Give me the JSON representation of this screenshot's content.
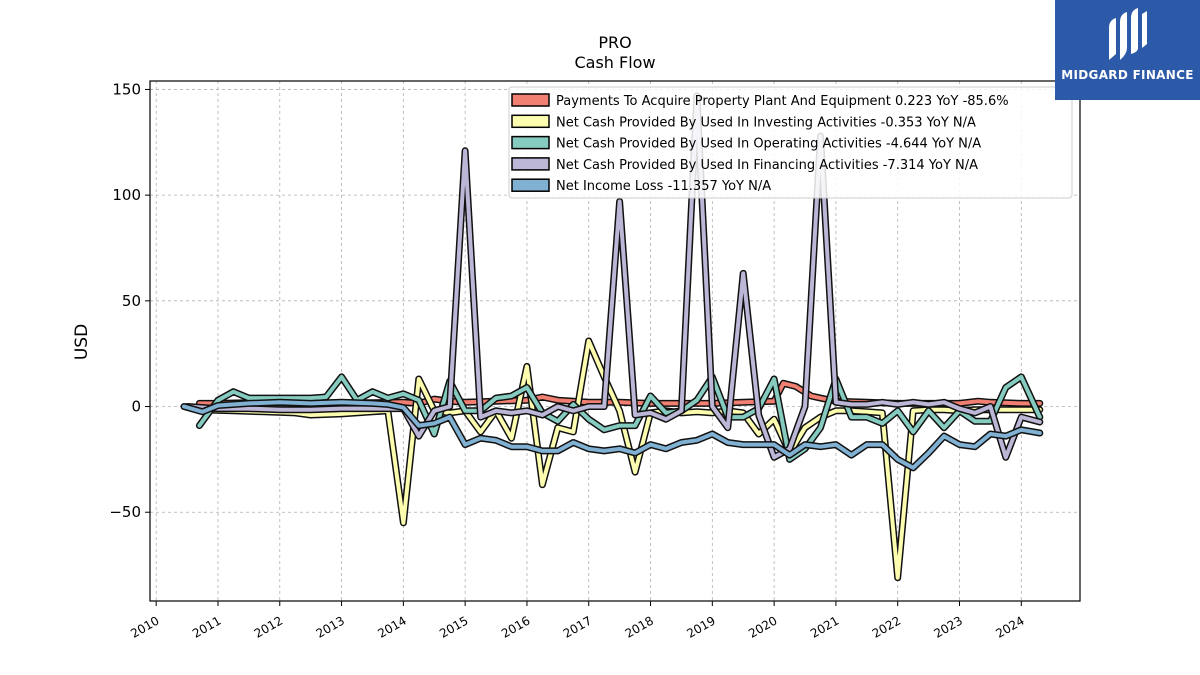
{
  "brand": {
    "name": "MIDGARD FINANCE",
    "logo_icon": "midgard-m-logo-icon",
    "background": "#2d5aa8"
  },
  "chart_data": {
    "type": "line",
    "title": "PRO",
    "subtitle": "Cash Flow",
    "ylabel": "USD",
    "xlabel": "",
    "xlim": [
      2009.9,
      2024.95
    ],
    "ylim": [
      -92,
      154
    ],
    "yticks": [
      -50,
      0,
      50,
      100,
      150
    ],
    "ytick_labels": [
      "−50",
      "0",
      "50",
      "100",
      "150"
    ],
    "xticks": [
      2010,
      2011,
      2012,
      2013,
      2014,
      2015,
      2016,
      2017,
      2018,
      2019,
      2020,
      2021,
      2022,
      2023,
      2024
    ],
    "xtick_labels": [
      "2010",
      "2011",
      "2012",
      "2013",
      "2014",
      "2015",
      "2016",
      "2017",
      "2018",
      "2019",
      "2020",
      "2021",
      "2022",
      "2023",
      "2024"
    ],
    "grid": true,
    "legend_position": "top-right",
    "series": [
      {
        "name": "Payments To Acquire Property Plant And Equipment  0.223 YoY -85.6%",
        "color": "#f28072",
        "points": [
          [
            2010.7,
            1.5
          ],
          [
            2011.0,
            1.5
          ],
          [
            2011.5,
            1.8
          ],
          [
            2012.0,
            1.8
          ],
          [
            2012.5,
            1.5
          ],
          [
            2013.0,
            1.8
          ],
          [
            2013.5,
            1.8
          ],
          [
            2014.0,
            2.0
          ],
          [
            2014.25,
            1.5
          ],
          [
            2014.5,
            3.5
          ],
          [
            2014.75,
            2.5
          ],
          [
            2015.0,
            2.0
          ],
          [
            2015.5,
            2.5
          ],
          [
            2016.0,
            3.0
          ],
          [
            2016.25,
            4.5
          ],
          [
            2016.5,
            3.0
          ],
          [
            2017.0,
            2.0
          ],
          [
            2017.5,
            2.0
          ],
          [
            2018.0,
            1.5
          ],
          [
            2018.5,
            1.5
          ],
          [
            2019.0,
            1.5
          ],
          [
            2019.5,
            2.0
          ],
          [
            2020.0,
            2.5
          ],
          [
            2020.15,
            11.0
          ],
          [
            2020.35,
            9.5
          ],
          [
            2020.6,
            5.0
          ],
          [
            2020.75,
            4.0
          ],
          [
            2021.0,
            2.5
          ],
          [
            2021.5,
            2.0
          ],
          [
            2022.0,
            1.5
          ],
          [
            2022.5,
            1.5
          ],
          [
            2023.0,
            1.5
          ],
          [
            2023.3,
            2.5
          ],
          [
            2023.5,
            2.0
          ],
          [
            2024.0,
            1.5
          ],
          [
            2024.3,
            1.5
          ]
        ]
      },
      {
        "name": "Net Cash Provided By Used In Investing Activities  -0.353 YoY N/A",
        "color": "#fdfdb0",
        "points": [
          [
            2010.7,
            -1.5
          ],
          [
            2011.25,
            -2.0
          ],
          [
            2011.75,
            -2.5
          ],
          [
            2012.25,
            -3.0
          ],
          [
            2012.5,
            -4.0
          ],
          [
            2013.0,
            -3.5
          ],
          [
            2013.5,
            -2.5
          ],
          [
            2013.75,
            -2.0
          ],
          [
            2014.0,
            -55.0
          ],
          [
            2014.25,
            13.0
          ],
          [
            2014.5,
            -2.0
          ],
          [
            2014.75,
            -3.0
          ],
          [
            2015.0,
            -2.0
          ],
          [
            2015.25,
            -12.0
          ],
          [
            2015.5,
            -2.0
          ],
          [
            2015.75,
            -15.0
          ],
          [
            2016.0,
            19.0
          ],
          [
            2016.25,
            -37.0
          ],
          [
            2016.5,
            -10.0
          ],
          [
            2016.75,
            -12.0
          ],
          [
            2017.0,
            31.0
          ],
          [
            2017.25,
            14.0
          ],
          [
            2017.5,
            -2.0
          ],
          [
            2017.75,
            -31.0
          ],
          [
            2018.0,
            -3.0
          ],
          [
            2018.25,
            -2.0
          ],
          [
            2018.5,
            -3.0
          ],
          [
            2018.75,
            -2.5
          ],
          [
            2019.0,
            -3.0
          ],
          [
            2019.25,
            -2.0
          ],
          [
            2019.5,
            -3.0
          ],
          [
            2019.75,
            -13.0
          ],
          [
            2020.0,
            -6.0
          ],
          [
            2020.25,
            -22.0
          ],
          [
            2020.5,
            -10.0
          ],
          [
            2020.75,
            -5.0
          ],
          [
            2021.0,
            -2.0
          ],
          [
            2021.25,
            -2.0
          ],
          [
            2021.5,
            -2.5
          ],
          [
            2021.75,
            -3.0
          ],
          [
            2022.0,
            -81.0
          ],
          [
            2022.25,
            -2.0
          ],
          [
            2022.5,
            -1.5
          ],
          [
            2022.75,
            -1.5
          ],
          [
            2023.0,
            -2.0
          ],
          [
            2023.25,
            -1.5
          ],
          [
            2023.5,
            -1.5
          ],
          [
            2023.75,
            -1.5
          ],
          [
            2024.0,
            -1.5
          ],
          [
            2024.3,
            -1.5
          ]
        ]
      },
      {
        "name": "Net Cash Provided By Used In Operating Activities  -4.644 YoY N/A",
        "color": "#85cbbf",
        "points": [
          [
            2010.7,
            -9.0
          ],
          [
            2011.0,
            3.0
          ],
          [
            2011.25,
            7.0
          ],
          [
            2011.5,
            4.0
          ],
          [
            2012.0,
            4.0
          ],
          [
            2012.5,
            4.0
          ],
          [
            2012.75,
            4.5
          ],
          [
            2013.0,
            14.0
          ],
          [
            2013.25,
            3.0
          ],
          [
            2013.5,
            7.0
          ],
          [
            2013.75,
            4.0
          ],
          [
            2014.0,
            6.0
          ],
          [
            2014.25,
            3.0
          ],
          [
            2014.5,
            -13.0
          ],
          [
            2014.75,
            12.0
          ],
          [
            2015.0,
            -2.0
          ],
          [
            2015.25,
            -2.0
          ],
          [
            2015.5,
            4.0
          ],
          [
            2015.75,
            5.0
          ],
          [
            2016.0,
            9.0
          ],
          [
            2016.25,
            -3.0
          ],
          [
            2016.5,
            -7.0
          ],
          [
            2016.75,
            1.0
          ],
          [
            2017.0,
            -6.0
          ],
          [
            2017.25,
            -11.0
          ],
          [
            2017.5,
            -9.0
          ],
          [
            2017.75,
            -9.0
          ],
          [
            2018.0,
            5.0
          ],
          [
            2018.25,
            -3.0
          ],
          [
            2018.5,
            -2.0
          ],
          [
            2018.75,
            3.0
          ],
          [
            2019.0,
            14.0
          ],
          [
            2019.25,
            -5.0
          ],
          [
            2019.5,
            -5.0
          ],
          [
            2019.75,
            -1.0
          ],
          [
            2020.0,
            13.0
          ],
          [
            2020.25,
            -25.0
          ],
          [
            2020.5,
            -20.0
          ],
          [
            2020.75,
            -10.0
          ],
          [
            2021.0,
            13.0
          ],
          [
            2021.25,
            -5.0
          ],
          [
            2021.5,
            -5.0
          ],
          [
            2021.75,
            -8.0
          ],
          [
            2022.0,
            -2.0
          ],
          [
            2022.25,
            -12.0
          ],
          [
            2022.5,
            -2.0
          ],
          [
            2022.75,
            -10.0
          ],
          [
            2023.0,
            -2.0
          ],
          [
            2023.25,
            -7.0
          ],
          [
            2023.5,
            -7.0
          ],
          [
            2023.75,
            9.0
          ],
          [
            2024.0,
            14.0
          ],
          [
            2024.3,
            -5.0
          ]
        ]
      },
      {
        "name": "Net Cash Provided By Used In Financing Activities  -7.314 YoY N/A",
        "color": "#bcb7d7",
        "points": [
          [
            2010.5,
            0.0
          ],
          [
            2011.0,
            -1.0
          ],
          [
            2011.5,
            -1.0
          ],
          [
            2012.0,
            -1.5
          ],
          [
            2012.5,
            -1.5
          ],
          [
            2013.0,
            -1.0
          ],
          [
            2013.5,
            -1.0
          ],
          [
            2014.0,
            -1.0
          ],
          [
            2014.25,
            -14.0
          ],
          [
            2014.5,
            -2.0
          ],
          [
            2014.75,
            0.0
          ],
          [
            2015.0,
            121.0
          ],
          [
            2015.25,
            -5.0
          ],
          [
            2015.5,
            -2.0
          ],
          [
            2015.75,
            -3.0
          ],
          [
            2016.0,
            -2.0
          ],
          [
            2016.25,
            -4.0
          ],
          [
            2016.5,
            0.0
          ],
          [
            2016.75,
            -2.0
          ],
          [
            2017.0,
            0.0
          ],
          [
            2017.25,
            0.0
          ],
          [
            2017.5,
            97.0
          ],
          [
            2017.75,
            -4.0
          ],
          [
            2018.0,
            -3.0
          ],
          [
            2018.25,
            -6.0
          ],
          [
            2018.5,
            -2.0
          ],
          [
            2018.75,
            147.0
          ],
          [
            2019.0,
            0.0
          ],
          [
            2019.25,
            -10.0
          ],
          [
            2019.5,
            63.0
          ],
          [
            2019.75,
            -4.0
          ],
          [
            2020.0,
            -24.0
          ],
          [
            2020.25,
            -20.0
          ],
          [
            2020.5,
            0.0
          ],
          [
            2020.75,
            128.0
          ],
          [
            2021.0,
            2.0
          ],
          [
            2021.25,
            1.0
          ],
          [
            2021.5,
            1.0
          ],
          [
            2021.75,
            2.0
          ],
          [
            2022.0,
            1.0
          ],
          [
            2022.25,
            2.0
          ],
          [
            2022.5,
            1.0
          ],
          [
            2022.75,
            2.0
          ],
          [
            2023.0,
            -1.0
          ],
          [
            2023.25,
            -3.0
          ],
          [
            2023.5,
            0.0
          ],
          [
            2023.75,
            -24.0
          ],
          [
            2024.0,
            -5.0
          ],
          [
            2024.3,
            -7.3
          ]
        ]
      },
      {
        "name": "Net Income Loss  -11.357 YoY N/A",
        "color": "#80b1d3",
        "points": [
          [
            2010.45,
            0.0
          ],
          [
            2010.75,
            -2.5
          ],
          [
            2011.0,
            0.5
          ],
          [
            2011.5,
            1.5
          ],
          [
            2012.0,
            2.0
          ],
          [
            2012.5,
            1.5
          ],
          [
            2013.0,
            2.0
          ],
          [
            2013.5,
            1.5
          ],
          [
            2013.75,
            1.0
          ],
          [
            2014.0,
            -0.5
          ],
          [
            2014.25,
            -9.0
          ],
          [
            2014.5,
            -8.0
          ],
          [
            2014.75,
            -5.0
          ],
          [
            2015.0,
            -18.0
          ],
          [
            2015.25,
            -15.0
          ],
          [
            2015.5,
            -16.0
          ],
          [
            2015.75,
            -19.0
          ],
          [
            2016.0,
            -19.0
          ],
          [
            2016.25,
            -21.0
          ],
          [
            2016.5,
            -21.0
          ],
          [
            2016.75,
            -17.0
          ],
          [
            2017.0,
            -20.0
          ],
          [
            2017.25,
            -21.0
          ],
          [
            2017.5,
            -20.0
          ],
          [
            2017.75,
            -22.0
          ],
          [
            2018.0,
            -18.0
          ],
          [
            2018.25,
            -20.0
          ],
          [
            2018.5,
            -17.0
          ],
          [
            2018.75,
            -16.0
          ],
          [
            2019.0,
            -13.0
          ],
          [
            2019.25,
            -17.0
          ],
          [
            2019.5,
            -18.0
          ],
          [
            2019.75,
            -18.0
          ],
          [
            2020.0,
            -18.0
          ],
          [
            2020.25,
            -23.0
          ],
          [
            2020.5,
            -18.0
          ],
          [
            2020.75,
            -19.0
          ],
          [
            2021.0,
            -18.0
          ],
          [
            2021.25,
            -23.0
          ],
          [
            2021.5,
            -18.0
          ],
          [
            2021.75,
            -18.0
          ],
          [
            2022.0,
            -25.0
          ],
          [
            2022.25,
            -29.0
          ],
          [
            2022.5,
            -22.0
          ],
          [
            2022.75,
            -14.0
          ],
          [
            2023.0,
            -18.0
          ],
          [
            2023.25,
            -19.0
          ],
          [
            2023.5,
            -13.0
          ],
          [
            2023.75,
            -14.0
          ],
          [
            2024.0,
            -11.0
          ],
          [
            2024.3,
            -12.5
          ]
        ]
      }
    ]
  }
}
